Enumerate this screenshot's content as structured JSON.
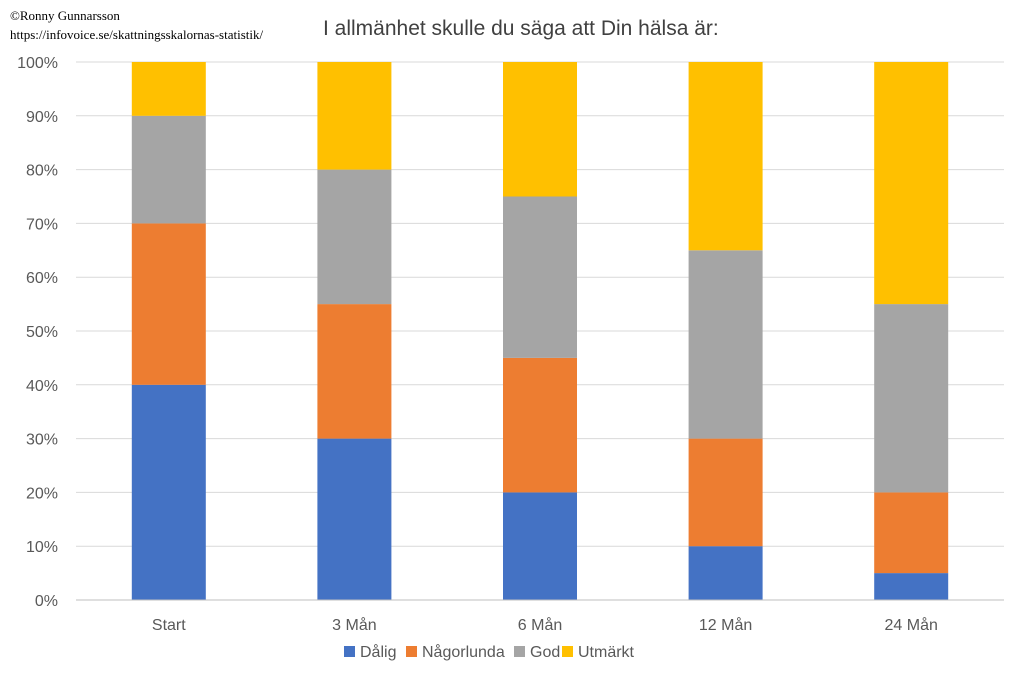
{
  "credit": {
    "author": "©Ronny Gunnarsson",
    "url": "https://infovoice.se/skattningsskalornas-statistik/"
  },
  "chart_data": {
    "type": "bar",
    "stacked": "percent",
    "title": "I allmänhet skulle du säga att Din hälsa är:",
    "categories": [
      "Start",
      "3 Mån",
      "6 Mån",
      "12 Mån",
      "24 Mån"
    ],
    "series": [
      {
        "name": "Dålig",
        "color": "#4472C4",
        "values": [
          40,
          30,
          20,
          10,
          5
        ]
      },
      {
        "name": "Någorlunda",
        "color": "#ED7D31",
        "values": [
          30,
          25,
          25,
          20,
          15
        ]
      },
      {
        "name": "God",
        "color": "#A5A5A5",
        "values": [
          20,
          25,
          30,
          35,
          35
        ]
      },
      {
        "name": "Utmärkt",
        "color": "#FFC000",
        "values": [
          10,
          20,
          25,
          35,
          45
        ]
      }
    ],
    "ylim": [
      0,
      100
    ],
    "yticks": [
      "0%",
      "10%",
      "20%",
      "30%",
      "40%",
      "50%",
      "60%",
      "70%",
      "80%",
      "90%",
      "100%"
    ],
    "grid": true,
    "legend": "bottom"
  }
}
